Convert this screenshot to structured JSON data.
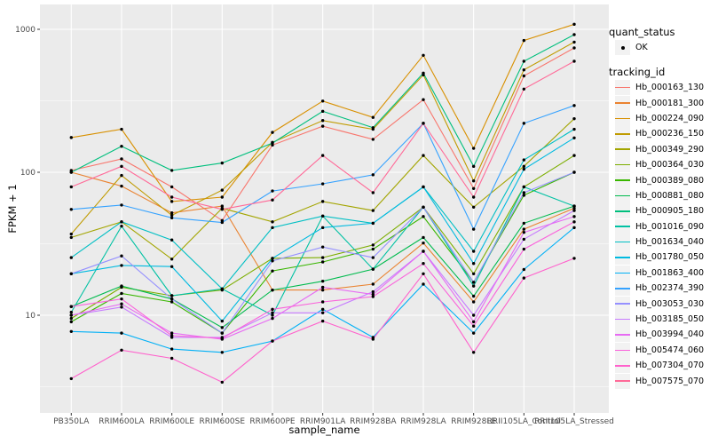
{
  "figure": {
    "background": "#FFFFFF",
    "panel_background": "#EBEBEB",
    "grid_color": "#FFFFFF",
    "tick_color": "#333333",
    "tick_label_color": "#4D4D4D",
    "point_color": "#000000"
  },
  "axes": {
    "x_title": "sample_name",
    "y_title": "FPKM + 1",
    "y_tick_labels": [
      "10",
      "100",
      "1000"
    ]
  },
  "legend": {
    "quant_status_title": "quant_status",
    "ok_label": "OK",
    "tracking_id_title": "tracking_id"
  },
  "chart_data": {
    "type": "line",
    "title": "",
    "xlabel": "sample_name",
    "ylabel": "FPKM + 1",
    "y_scale": "log10",
    "y_ticks": [
      10,
      100,
      1000
    ],
    "y_minor_ticks": [
      3.162,
      31.62,
      316.2
    ],
    "ylim_log10": [
      0.32,
      3.17
    ],
    "grid": true,
    "legend_position": "right",
    "point_marker": "black-dot",
    "categories": [
      "PB350LA",
      "RRIM600LA",
      "RRIM600LE",
      "RRIM600SE",
      "RRIM600PE",
      "RRIM901LA",
      "RRIM928BA",
      "RRIM928LA",
      "RRIM928LE",
      "RRII105LA_Control",
      "RRII105LA_Stressed"
    ],
    "series": [
      {
        "name": "Hb_000163_130",
        "color": "#F8766D",
        "values": [
          103,
          124,
          79,
          46,
          155,
          210,
          170,
          322,
          77,
          472,
          741
        ]
      },
      {
        "name": "Hb_000181_300",
        "color": "#EA8331",
        "values": [
          100,
          80,
          52,
          58,
          15,
          15,
          16.5,
          32,
          12.4,
          40,
          56
        ]
      },
      {
        "name": "Hb_000224_090",
        "color": "#D89000",
        "values": [
          175,
          200,
          62.5,
          67,
          190,
          315,
          242,
          658,
          147,
          835,
          1084
        ]
      },
      {
        "name": "Hb_000236_150",
        "color": "#C09B00",
        "values": [
          37,
          95,
          50,
          75,
          162,
          230,
          200,
          480,
          87,
          520,
          814
        ]
      },
      {
        "name": "Hb_000349_290",
        "color": "#A3A500",
        "values": [
          35,
          45,
          24.7,
          56,
          45,
          62.5,
          54,
          131,
          57,
          110,
          237
        ]
      },
      {
        "name": "Hb_000364_030",
        "color": "#7CAE00",
        "values": [
          9.5,
          15.7,
          13.7,
          15,
          25,
          25.3,
          31,
          57,
          19.5,
          79,
          131
        ]
      },
      {
        "name": "Hb_000389_080",
        "color": "#39B600",
        "values": [
          9,
          14.2,
          12.4,
          7.5,
          20.4,
          23.6,
          29,
          49,
          17,
          69,
          100
        ]
      },
      {
        "name": "Hb_000881_080",
        "color": "#00BB4E",
        "values": [
          11.5,
          16,
          13,
          8.2,
          15,
          17.3,
          21,
          35,
          13.6,
          44,
          58
        ]
      },
      {
        "name": "Hb_000905_180",
        "color": "#00BF7D",
        "values": [
          100,
          152,
          103,
          116,
          160,
          267,
          205,
          494,
          110,
          598,
          918
        ]
      },
      {
        "name": "Hb_001016_090",
        "color": "#00C1A3",
        "values": [
          10.5,
          42,
          13.7,
          15.3,
          10,
          49.4,
          21,
          57,
          16,
          79,
          58
        ]
      },
      {
        "name": "Hb_001634_040",
        "color": "#00BFC4",
        "values": [
          25.3,
          45,
          33.6,
          15.3,
          41,
          49.4,
          44,
          79,
          28,
          122,
          200
        ]
      },
      {
        "name": "Hb_001780_050",
        "color": "#00BAE0",
        "values": [
          19.5,
          22.3,
          21.9,
          9.1,
          25,
          41,
          44,
          79,
          23,
          105,
          174
        ]
      },
      {
        "name": "Hb_001863_400",
        "color": "#00B0F6",
        "values": [
          7.7,
          7.5,
          5.8,
          5.5,
          6.6,
          11,
          7,
          16.5,
          7.5,
          20.9,
          41
        ]
      },
      {
        "name": "Hb_002374_390",
        "color": "#35A2FF",
        "values": [
          55,
          59,
          48,
          44.6,
          74,
          83,
          96,
          220,
          40,
          220,
          293
        ]
      },
      {
        "name": "Hb_003053_030",
        "color": "#9590FF",
        "values": [
          19.5,
          26,
          13,
          7.5,
          24,
          30,
          25.3,
          57,
          17,
          72,
          100
        ]
      },
      {
        "name": "Hb_003185_050",
        "color": "#C77CFF",
        "values": [
          10,
          11.4,
          7,
          7,
          10.4,
          10.4,
          14.6,
          28,
          10,
          34,
          54
        ]
      },
      {
        "name": "Hb_003994_040",
        "color": "#E76BF3",
        "values": [
          10,
          12,
          7.5,
          6.8,
          9.5,
          15.7,
          14,
          28,
          9,
          38,
          49
        ]
      },
      {
        "name": "Hb_005474_060",
        "color": "#FA62DB",
        "values": [
          11.5,
          13,
          7.2,
          6.9,
          11,
          12.4,
          13.5,
          23,
          8.4,
          29,
          45
        ]
      },
      {
        "name": "Hb_007304_070",
        "color": "#FF61CC",
        "values": [
          3.6,
          5.7,
          5.0,
          3.4,
          6.6,
          9.1,
          6.8,
          19.5,
          5.5,
          18.2,
          25
        ]
      },
      {
        "name": "Hb_007575_070",
        "color": "#FF6A98",
        "values": [
          79,
          110,
          67,
          55,
          64,
          131,
          72,
          220,
          67,
          382,
          598
        ]
      }
    ]
  }
}
